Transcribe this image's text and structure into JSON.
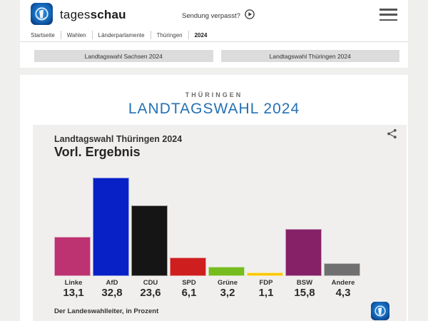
{
  "header": {
    "brand_regular": "tages",
    "brand_bold": "schau",
    "sendung_verpasst_label": "Sendung verpasst?",
    "icons": [
      "tagesschau-globe-logo",
      "play-circle-icon",
      "hamburger-menu-icon"
    ]
  },
  "breadcrumb": {
    "items": [
      "Startseite",
      "Wahlen",
      "Länderparlamente",
      "Thüringen",
      "2024"
    ],
    "current": "2024"
  },
  "nav_buttons": [
    {
      "label": "Landtagswahl Sachsen 2024"
    },
    {
      "label": "Landtagswahl Thüringen 2024"
    }
  ],
  "page": {
    "kicker": "THÜRINGEN",
    "title": "LANDTAGSWAHL 2024",
    "title_color": "#2471b5"
  },
  "chart_data": {
    "type": "bar",
    "title": "Landtagswahl Thüringen 2024",
    "subtitle": "Vorl. Ergebnis",
    "source": "Der Landeswahlleiter, in Prozent",
    "unit": "Prozent",
    "categories": [
      "Linke",
      "AfD",
      "CDU",
      "SPD",
      "Grüne",
      "FDP",
      "BSW",
      "Andere"
    ],
    "values": [
      13.1,
      32.8,
      23.6,
      6.1,
      3.2,
      1.1,
      15.8,
      4.3
    ],
    "value_labels": [
      "13,1",
      "32,8",
      "23,6",
      "6,1",
      "3,2",
      "1,1",
      "15,8",
      "4,3"
    ],
    "colors": [
      "#bd3270",
      "#0721c6",
      "#151515",
      "#ce1e1e",
      "#77bc1f",
      "#f8c800",
      "#862168",
      "#707070"
    ],
    "ylim": [
      0,
      35
    ],
    "grid": false,
    "legend": "none",
    "icons": [
      "share-icon",
      "tagesschau-globe-logo"
    ]
  }
}
